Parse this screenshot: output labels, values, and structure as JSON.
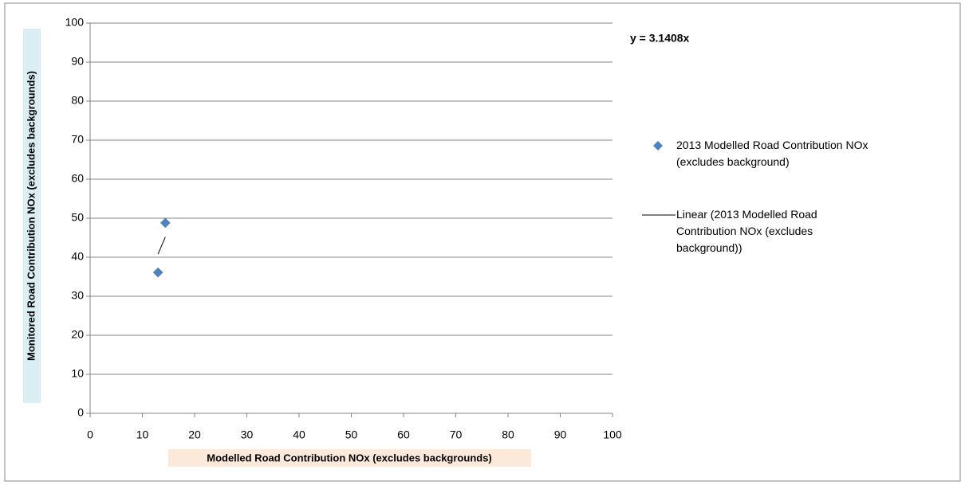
{
  "chart_data": {
    "type": "scatter",
    "xlabel": "Modelled Road Contribution NOx (excludes backgrounds)",
    "ylabel": "Monitored Road Contribution NOx (excludes backgrounds)",
    "series": [
      {
        "name": "2013 Modelled Road Contribution NOx (excludes background)",
        "color": "#4f81bd",
        "x": [
          13.0,
          14.4
        ],
        "values": [
          36.1,
          48.8
        ]
      }
    ],
    "trendline": {
      "name": "Linear (2013 Modelled Road Contribution NOx (excludes background))",
      "color": "#000000",
      "x": [
        13.0,
        14.4
      ],
      "values": [
        40.8,
        45.2
      ]
    },
    "annotation": "y = 3.1408x",
    "xlim": [
      0,
      100
    ],
    "xticks": [
      0,
      10,
      20,
      30,
      40,
      50,
      60,
      70,
      80,
      90,
      100
    ],
    "ylim": [
      0,
      100
    ],
    "yticks": [
      0,
      10,
      20,
      30,
      40,
      50,
      60,
      70,
      80,
      90,
      100
    ],
    "grid": true
  }
}
